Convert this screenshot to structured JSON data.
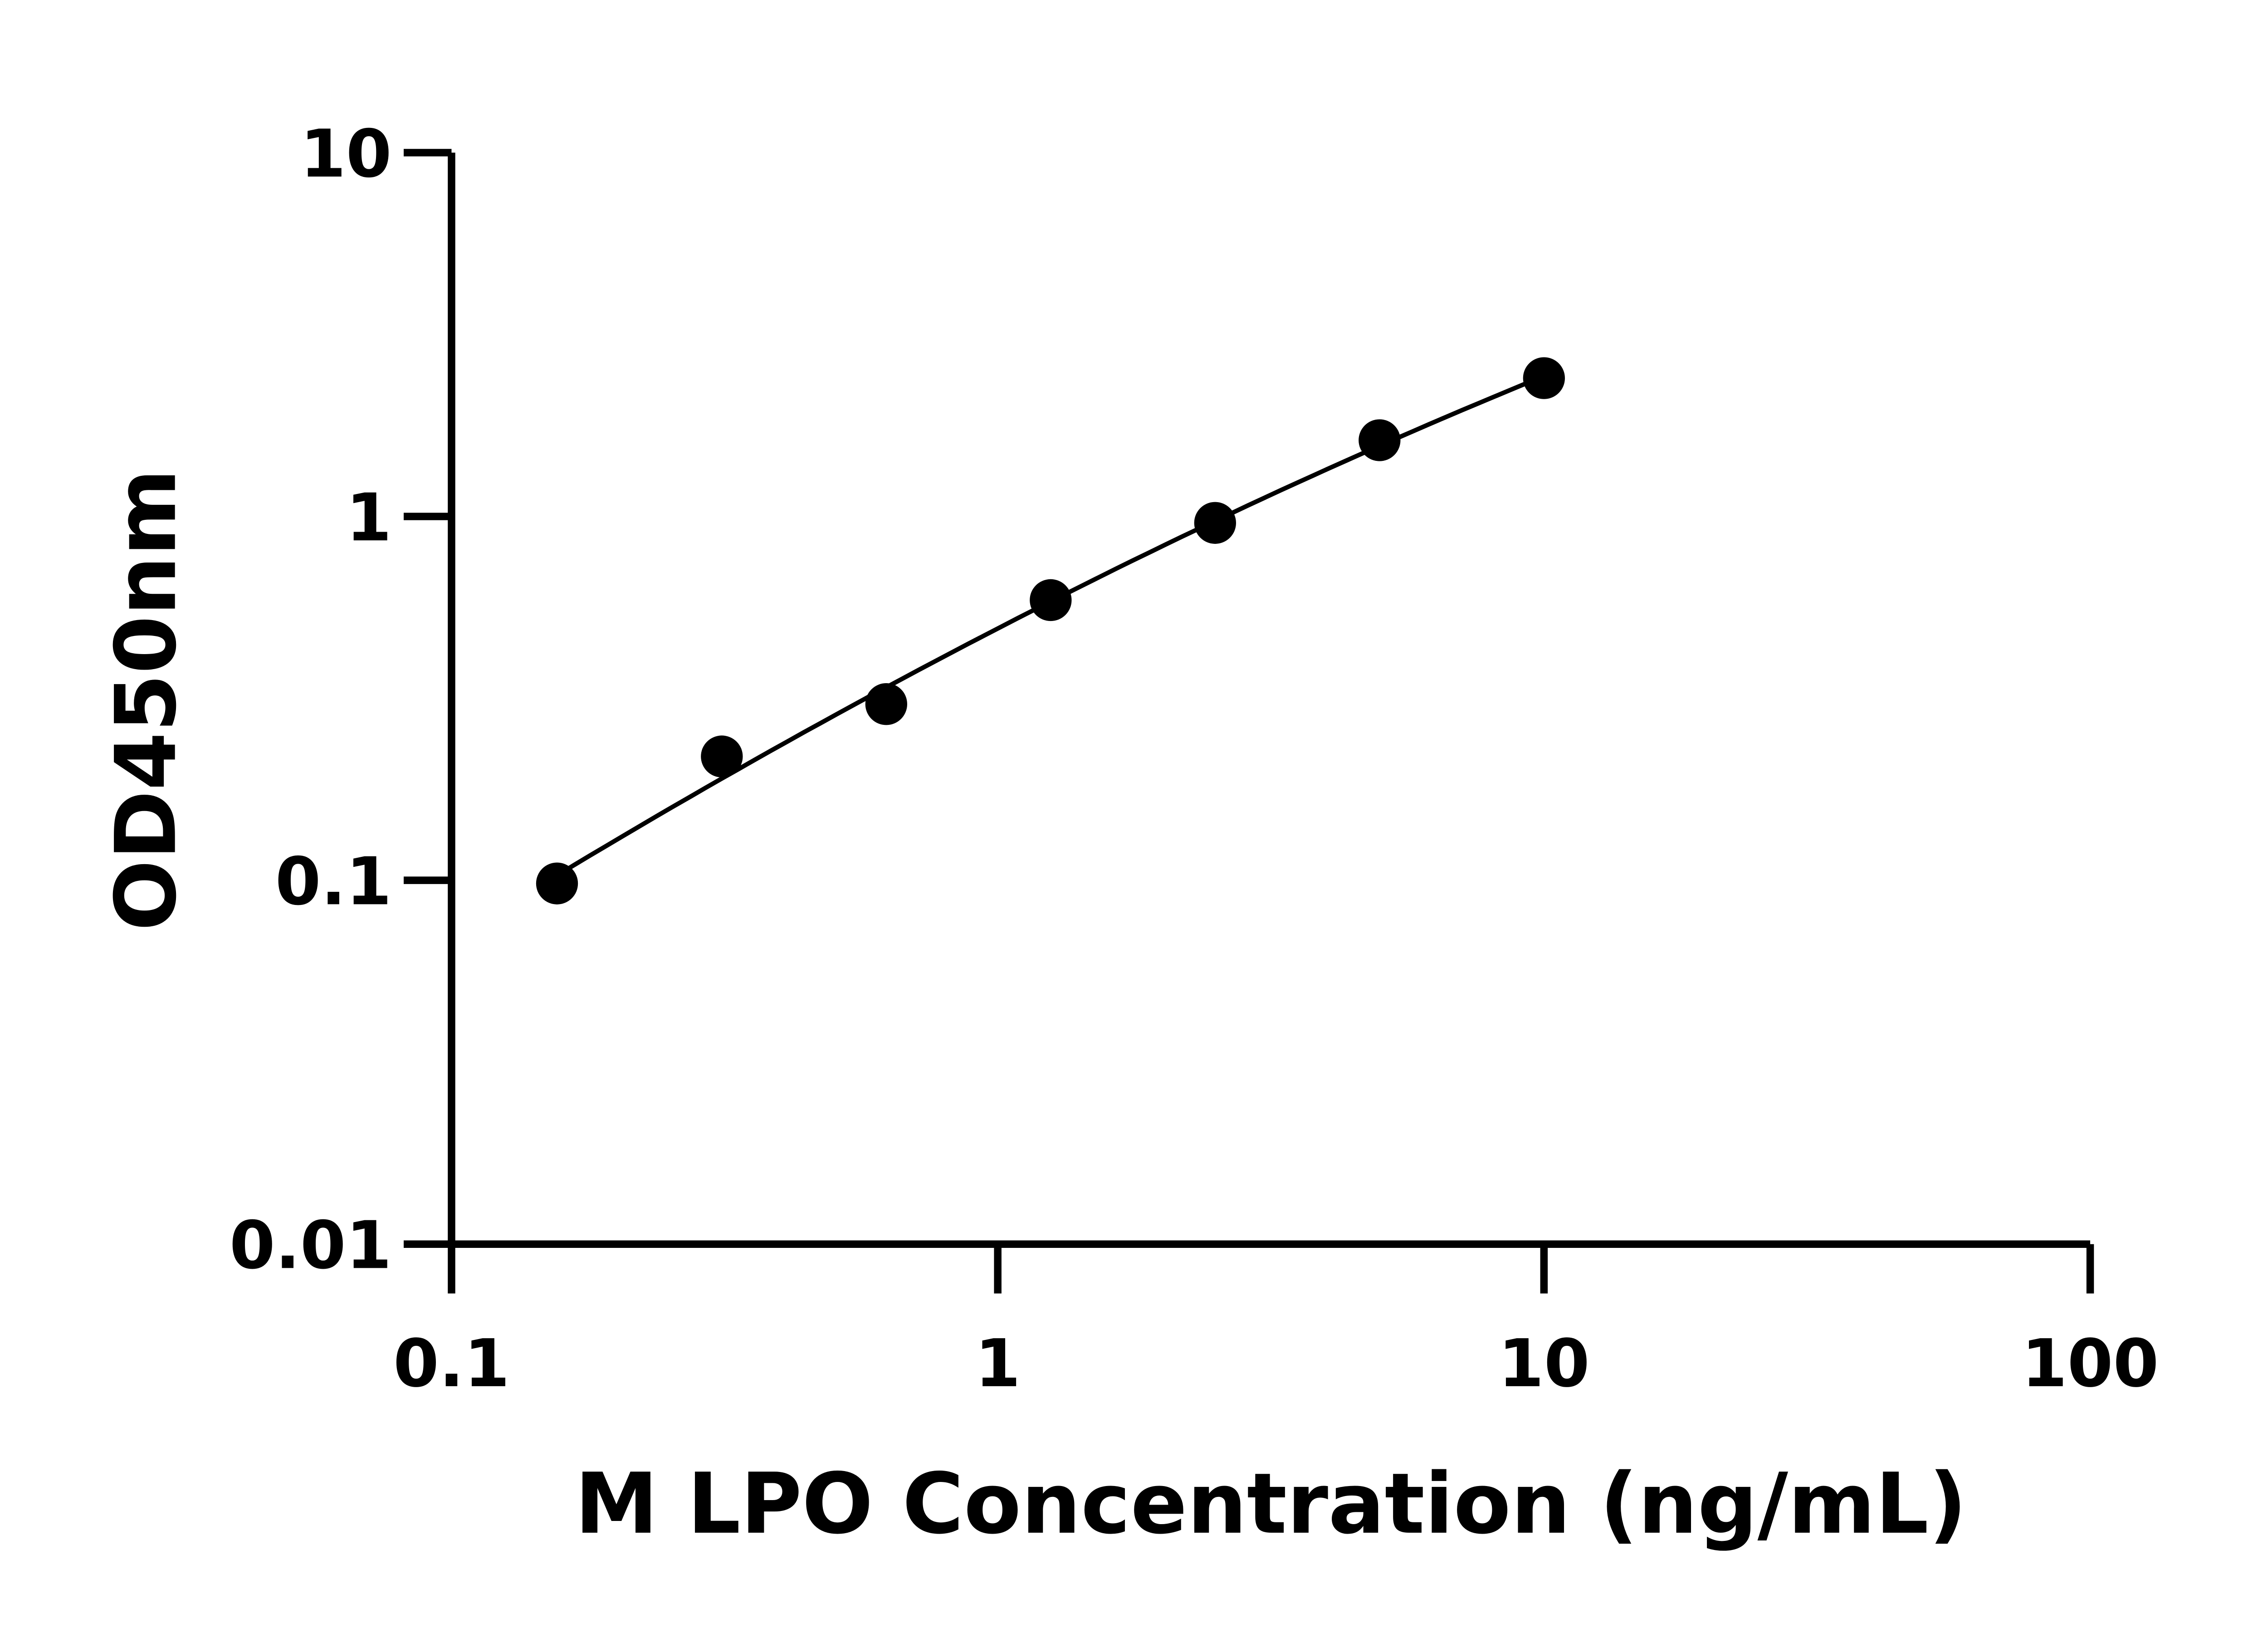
{
  "chart_data": {
    "type": "scatter",
    "title": "",
    "xlabel": "M LPO Concentration (ng/mL)",
    "ylabel": "OD450nm",
    "xscale": "log",
    "yscale": "log",
    "xlim": [
      0.1,
      100
    ],
    "ylim": [
      0.01,
      10
    ],
    "xticks": [
      0.1,
      1,
      10,
      100
    ],
    "xtick_labels": [
      "0.1",
      "1",
      "10",
      "100"
    ],
    "yticks": [
      0.01,
      0.1,
      1,
      10
    ],
    "ytick_labels": [
      "0.01",
      "0.1",
      "1",
      "10"
    ],
    "grid": false,
    "fit_curve": true,
    "color": "#000000",
    "x": [
      0.156,
      0.3125,
      0.625,
      1.25,
      2.5,
      5,
      10
    ],
    "y": [
      0.098,
      0.219,
      0.305,
      0.589,
      0.96,
      1.62,
      2.4
    ]
  }
}
